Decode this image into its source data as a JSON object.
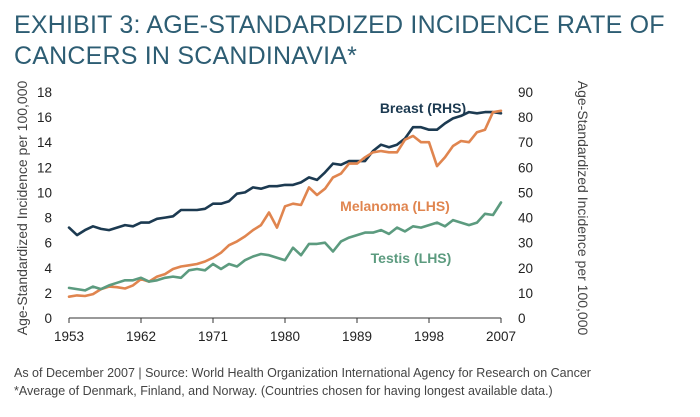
{
  "title": "EXHIBIT 3: AGE-STANDARDIZED INCIDENCE RATE OF CANCERS IN SCANDINAVIA*",
  "footer": {
    "source": "As of December 2007 | Source: World Health Organization International Agency for Research on Cancer",
    "note": "*Average of Denmark, Finland, and Norway. (Countries chosen for having longest available data.)"
  },
  "colors": {
    "breast": "#1c3a51",
    "melanoma": "#e0854f",
    "testis": "#5c9b7f"
  },
  "chart_data": {
    "type": "line",
    "ylabel_left": "Age-Standardized Incidence per 100,000",
    "ylabel_right": "Age-Standardized Incidence per 100,000",
    "xlim": [
      1953,
      2007
    ],
    "ylim_left": [
      0,
      18
    ],
    "ylim_right": [
      0,
      90
    ],
    "x_ticks": [
      1953,
      1962,
      1971,
      1980,
      1989,
      1998,
      2007
    ],
    "y_left_ticks": [
      0,
      2,
      4,
      6,
      8,
      10,
      12,
      14,
      16,
      18
    ],
    "y_right_ticks": [
      0,
      10,
      20,
      30,
      40,
      50,
      60,
      70,
      80,
      90
    ],
    "grid": false,
    "x": [
      1953,
      1954,
      1955,
      1956,
      1957,
      1958,
      1959,
      1960,
      1961,
      1962,
      1963,
      1964,
      1965,
      1966,
      1967,
      1968,
      1969,
      1970,
      1971,
      1972,
      1973,
      1974,
      1975,
      1976,
      1977,
      1978,
      1979,
      1980,
      1981,
      1982,
      1983,
      1984,
      1985,
      1986,
      1987,
      1988,
      1989,
      1990,
      1991,
      1992,
      1993,
      1994,
      1995,
      1996,
      1997,
      1998,
      1999,
      2000,
      2001,
      2002,
      2003,
      2004,
      2005,
      2006,
      2007
    ],
    "series": [
      {
        "name": "Breast (RHS)",
        "axis": "right",
        "color_key": "breast",
        "values": [
          36,
          33,
          35,
          36.5,
          35.5,
          35,
          36,
          37,
          36.5,
          38,
          38,
          39.5,
          40,
          40.5,
          43,
          43,
          43,
          43.5,
          45.5,
          45.5,
          46.5,
          49.5,
          50,
          52,
          51.5,
          52.5,
          52.5,
          53,
          53,
          54,
          56,
          55,
          58,
          61.5,
          61,
          62.5,
          62.5,
          62.5,
          66.5,
          69,
          68,
          69,
          71.5,
          76,
          76,
          75,
          75,
          77.5,
          79.5,
          80.5,
          82,
          81.5,
          82,
          82,
          81.5
        ]
      },
      {
        "name": "Melanoma (LHS)",
        "axis": "left",
        "color_key": "melanoma",
        "values": [
          1.7,
          1.8,
          1.75,
          1.9,
          2.3,
          2.5,
          2.45,
          2.35,
          2.6,
          3.1,
          2.9,
          3.3,
          3.5,
          3.9,
          4.1,
          4.2,
          4.3,
          4.5,
          4.8,
          5.2,
          5.8,
          6.1,
          6.5,
          7,
          7.4,
          8.4,
          7.2,
          8.9,
          9.1,
          9.0,
          10.4,
          9.8,
          10.3,
          11.2,
          11.5,
          12.3,
          12.3,
          12.8,
          13.2,
          13.3,
          13.2,
          13.2,
          14.2,
          14.5,
          14.0,
          14.0,
          12.1,
          12.8,
          13.7,
          14.1,
          14.0,
          14.8,
          15.0,
          16.4,
          16.5
        ]
      },
      {
        "name": "Testis (LHS)",
        "axis": "left",
        "color_key": "testis",
        "values": [
          2.4,
          2.3,
          2.2,
          2.5,
          2.3,
          2.6,
          2.8,
          3.0,
          3.0,
          3.2,
          2.9,
          3.0,
          3.2,
          3.3,
          3.2,
          3.8,
          3.9,
          3.8,
          4.3,
          3.9,
          4.3,
          4.1,
          4.6,
          4.9,
          5.1,
          5.0,
          4.8,
          4.6,
          5.6,
          5.0,
          5.9,
          5.9,
          6.0,
          5.3,
          6.1,
          6.4,
          6.6,
          6.8,
          6.8,
          7.0,
          6.7,
          7.2,
          6.9,
          7.3,
          7.2,
          7.4,
          7.6,
          7.3,
          7.8,
          7.6,
          7.4,
          7.6,
          8.3,
          8.2,
          9.2
        ]
      }
    ]
  }
}
